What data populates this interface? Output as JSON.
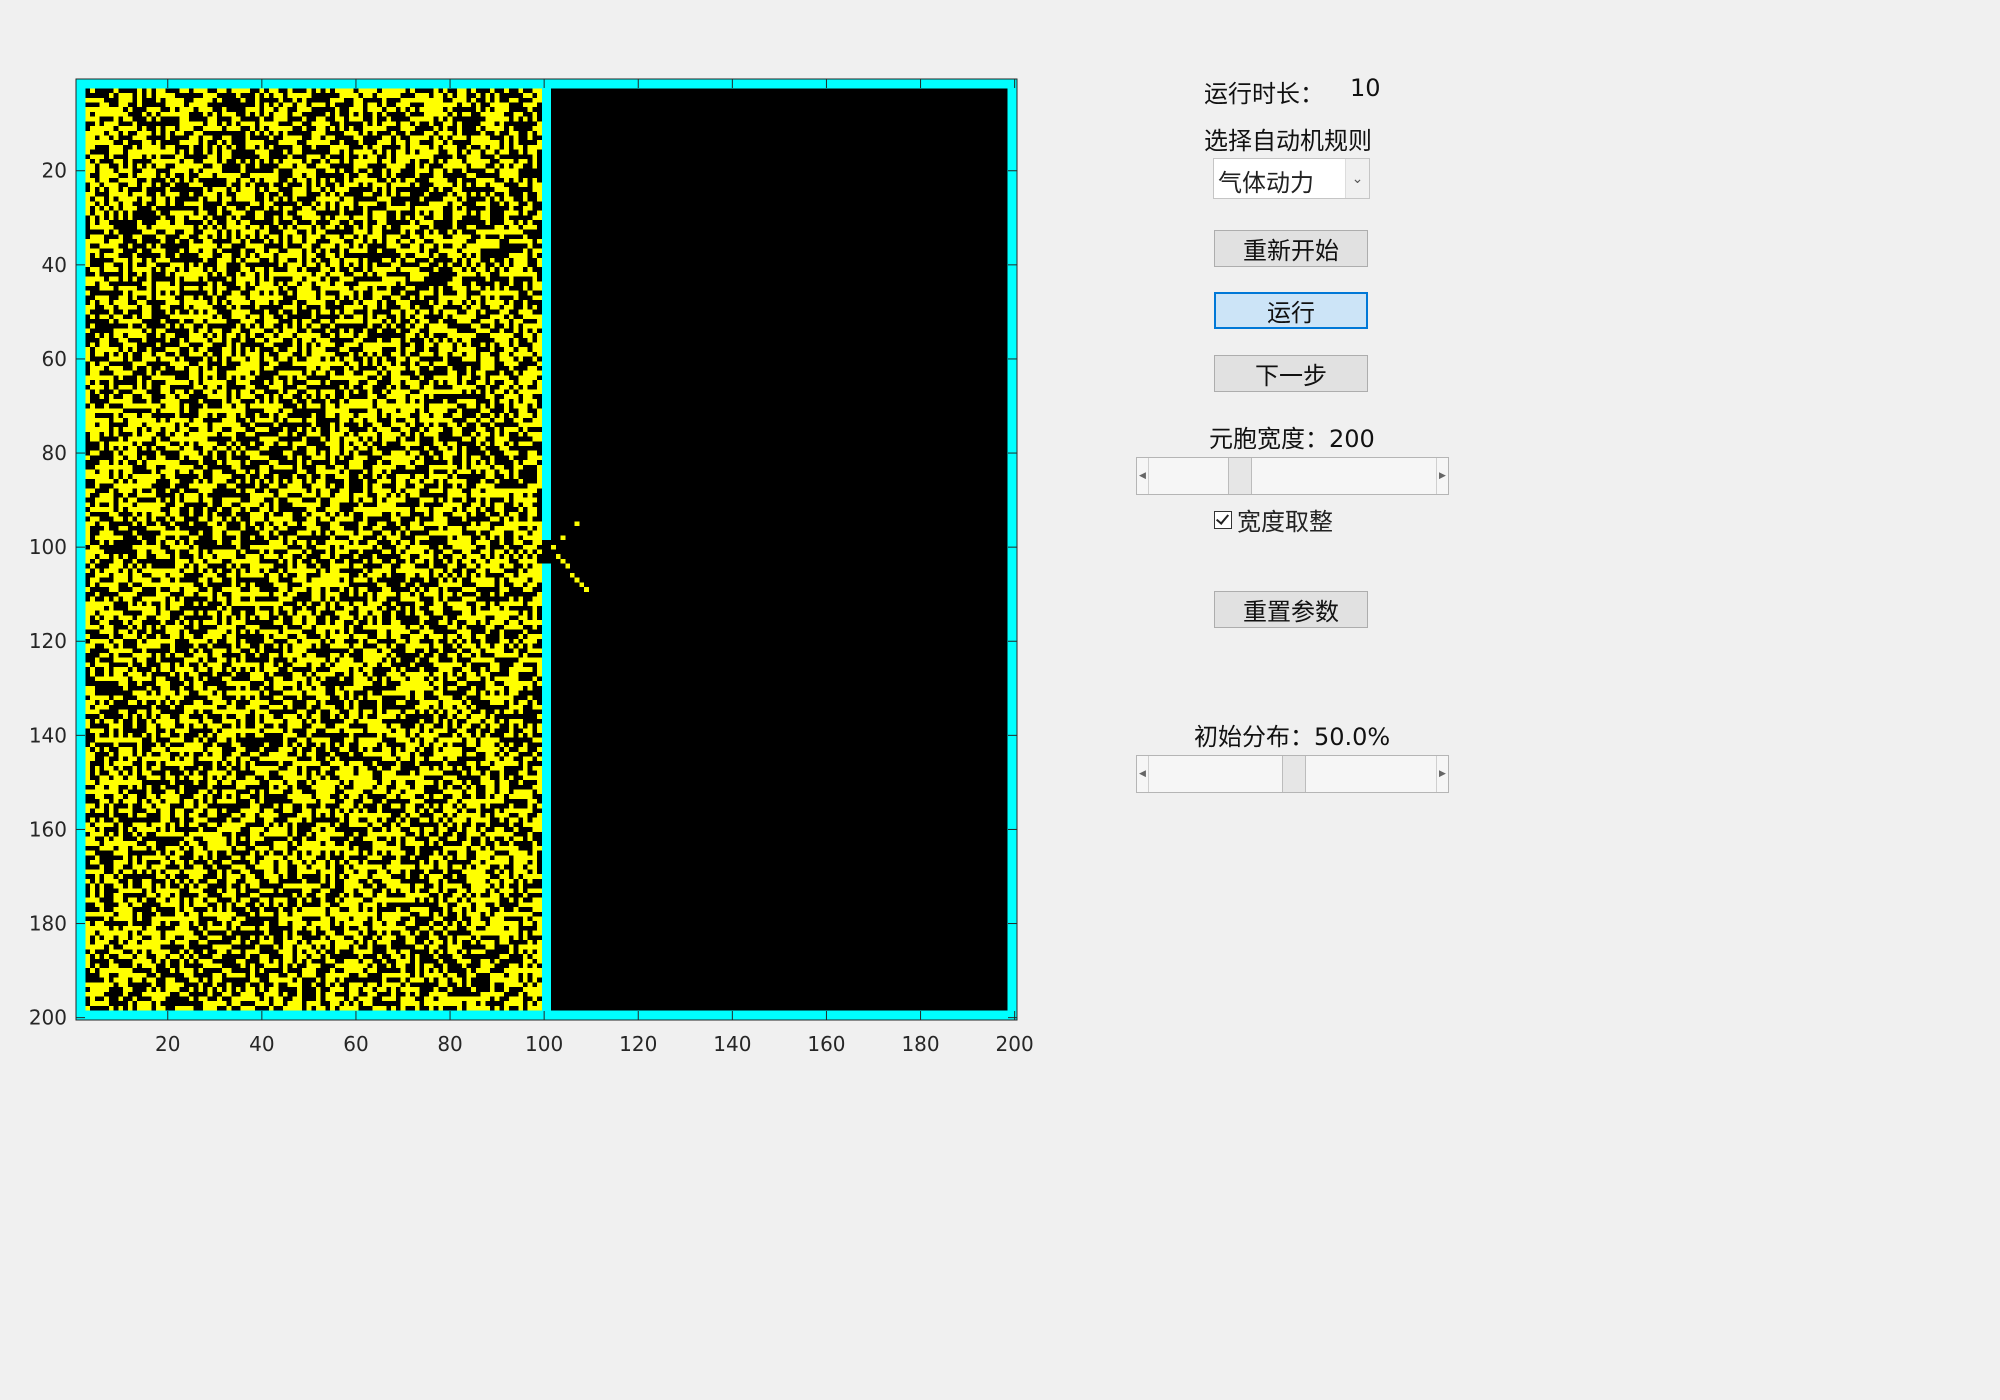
{
  "controls": {
    "runtime_label": "运行时长：",
    "runtime_value": "10",
    "rule_label": "选择自动机规则",
    "rule_selected": "气体动力",
    "restart_button": "重新开始",
    "run_button": "运行",
    "next_button": "下一步",
    "cell_width_label": "元胞宽度：200",
    "cell_width_slider": 0.3,
    "round_width_label": "宽度取整",
    "round_width_checked": true,
    "reset_button": "重置参数",
    "init_dist_label": "初始分布：50.0%",
    "init_dist_slider": 0.5
  },
  "chart_data": {
    "type": "heatmap",
    "grid_size": 200,
    "colors": {
      "empty": "#000000",
      "particle": "#ffff00",
      "wall": "#00ffff"
    },
    "wall_column": 100,
    "gap_rows": [
      99,
      103
    ],
    "x_ticks": [
      20,
      40,
      60,
      80,
      100,
      120,
      140,
      160,
      180,
      200
    ],
    "y_ticks": [
      20,
      40,
      60,
      80,
      100,
      120,
      140,
      160,
      180,
      200
    ],
    "x_tick_labels": [
      "20",
      "40",
      "60",
      "80",
      "100",
      "120",
      "140",
      "160",
      "180",
      "200"
    ],
    "y_tick_labels": [
      "20",
      "40",
      "60",
      "80",
      "100",
      "120",
      "140",
      "160",
      "180",
      "200"
    ],
    "left_density": 0.5,
    "escaped_particles": [
      [
        95,
        107
      ],
      [
        98,
        104
      ],
      [
        100,
        102
      ],
      [
        102,
        103
      ],
      [
        103,
        104
      ],
      [
        104,
        105
      ],
      [
        106,
        106
      ],
      [
        107,
        107
      ],
      [
        108,
        108
      ],
      [
        109,
        109
      ]
    ]
  }
}
